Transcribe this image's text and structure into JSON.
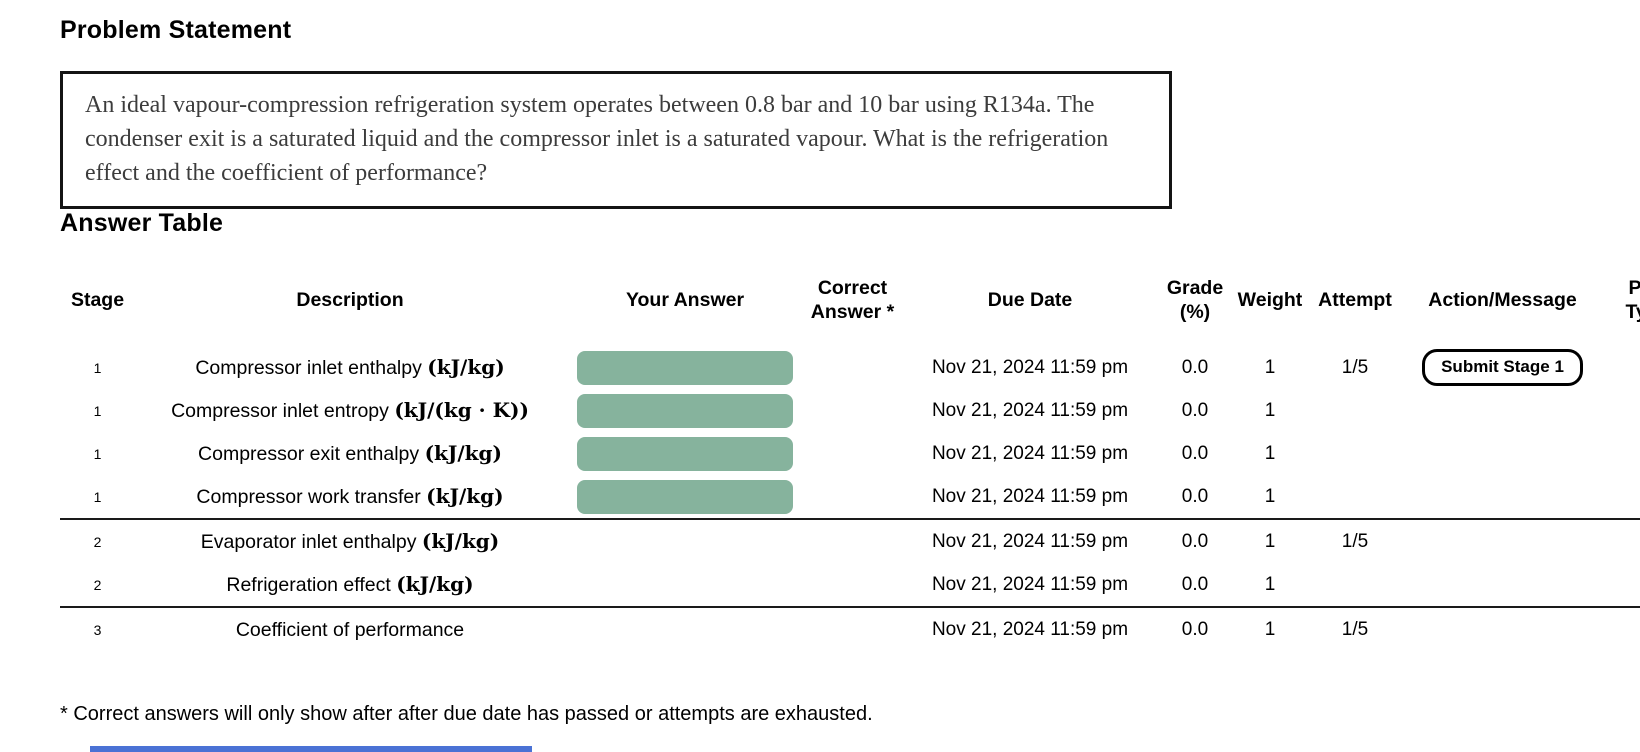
{
  "problem_statement": {
    "heading": "Problem Statement",
    "text": "An ideal vapour-compression refrigeration system operates between 0.8 bar and 10 bar using R134a.  The condenser exit is a saturated liquid and the compressor inlet is a saturated vapour.  What is the refrigeration effect and the coefficient of performance?"
  },
  "answer_table": {
    "heading": "Answer Table",
    "columns": {
      "stage": "Stage",
      "description": "Description",
      "your_answer": "Your Answer",
      "correct_answer": "Correct Answer *",
      "due_date": "Due Date",
      "grade": "Grade (%)",
      "weight": "Weight",
      "attempt": "Attempt",
      "action": "Action/Message",
      "part_type": "Part Type"
    },
    "rows": [
      {
        "stage": "1",
        "description": "Compressor inlet enthalpy ",
        "unit": "(kJ/kg)",
        "due_date": "Nov 21, 2024 11:59 pm",
        "grade": "0.0",
        "weight": "1",
        "attempt": "1/5",
        "action": "Submit Stage 1"
      },
      {
        "stage": "1",
        "description": "Compressor inlet entropy ",
        "unit": "(kJ/(kg · K))",
        "due_date": "Nov 21, 2024 11:59 pm",
        "grade": "0.0",
        "weight": "1",
        "attempt": "",
        "action": ""
      },
      {
        "stage": "1",
        "description": "Compressor exit enthalpy ",
        "unit": "(kJ/kg)",
        "due_date": "Nov 21, 2024 11:59 pm",
        "grade": "0.0",
        "weight": "1",
        "attempt": "",
        "action": ""
      },
      {
        "stage": "1",
        "description": "Compressor work transfer ",
        "unit": "(kJ/kg)",
        "due_date": "Nov 21, 2024 11:59 pm",
        "grade": "0.0",
        "weight": "1",
        "attempt": "",
        "action": ""
      },
      {
        "stage": "2",
        "description": "Evaporator inlet enthalpy ",
        "unit": "(kJ/kg)",
        "due_date": "Nov 21, 2024 11:59 pm",
        "grade": "0.0",
        "weight": "1",
        "attempt": "1/5",
        "action": ""
      },
      {
        "stage": "2",
        "description": "Refrigeration effect ",
        "unit": "(kJ/kg)",
        "due_date": "Nov 21, 2024 11:59 pm",
        "grade": "0.0",
        "weight": "1",
        "attempt": "",
        "action": ""
      },
      {
        "stage": "3",
        "description": "Coefficient of performance",
        "unit": "",
        "due_date": "Nov 21, 2024 11:59 pm",
        "grade": "0.0",
        "weight": "1",
        "attempt": "1/5",
        "action": ""
      }
    ]
  },
  "footnote": "* Correct answers will only show after after due date has passed or attempts are exhausted.",
  "colors": {
    "answer_box_green": "#86b39d",
    "bottom_bar_blue": "#4a72d5"
  }
}
